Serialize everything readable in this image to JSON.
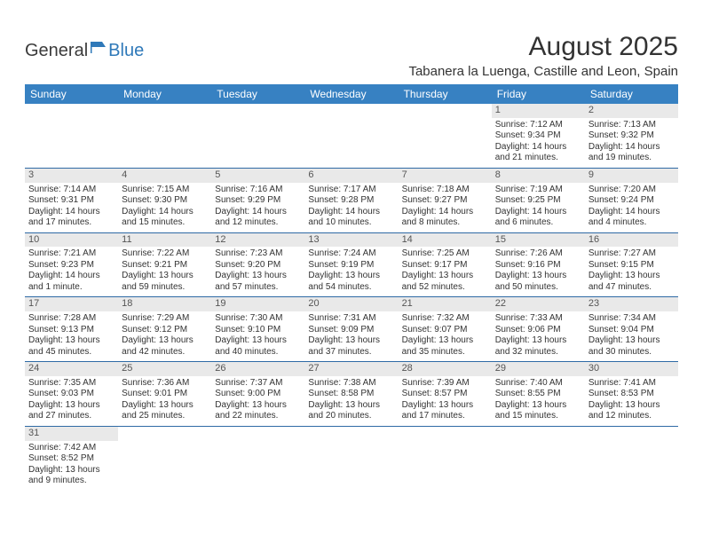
{
  "logo": {
    "part1": "General",
    "part2": "Blue"
  },
  "title": "August 2025",
  "location": "Tabanera la Luenga, Castille and Leon, Spain",
  "colors": {
    "header_bg": "#3781c2",
    "header_text": "#ffffff",
    "daynum_bg": "#e9e9e9",
    "row_border": "#2f6aa5",
    "text": "#333333",
    "logo_blue": "#2f79b9"
  },
  "weekdays": [
    "Sunday",
    "Monday",
    "Tuesday",
    "Wednesday",
    "Thursday",
    "Friday",
    "Saturday"
  ],
  "weeks": [
    [
      null,
      null,
      null,
      null,
      null,
      {
        "n": "1",
        "sr": "Sunrise: 7:12 AM",
        "ss": "Sunset: 9:34 PM",
        "d1": "Daylight: 14 hours",
        "d2": "and 21 minutes."
      },
      {
        "n": "2",
        "sr": "Sunrise: 7:13 AM",
        "ss": "Sunset: 9:32 PM",
        "d1": "Daylight: 14 hours",
        "d2": "and 19 minutes."
      }
    ],
    [
      {
        "n": "3",
        "sr": "Sunrise: 7:14 AM",
        "ss": "Sunset: 9:31 PM",
        "d1": "Daylight: 14 hours",
        "d2": "and 17 minutes."
      },
      {
        "n": "4",
        "sr": "Sunrise: 7:15 AM",
        "ss": "Sunset: 9:30 PM",
        "d1": "Daylight: 14 hours",
        "d2": "and 15 minutes."
      },
      {
        "n": "5",
        "sr": "Sunrise: 7:16 AM",
        "ss": "Sunset: 9:29 PM",
        "d1": "Daylight: 14 hours",
        "d2": "and 12 minutes."
      },
      {
        "n": "6",
        "sr": "Sunrise: 7:17 AM",
        "ss": "Sunset: 9:28 PM",
        "d1": "Daylight: 14 hours",
        "d2": "and 10 minutes."
      },
      {
        "n": "7",
        "sr": "Sunrise: 7:18 AM",
        "ss": "Sunset: 9:27 PM",
        "d1": "Daylight: 14 hours",
        "d2": "and 8 minutes."
      },
      {
        "n": "8",
        "sr": "Sunrise: 7:19 AM",
        "ss": "Sunset: 9:25 PM",
        "d1": "Daylight: 14 hours",
        "d2": "and 6 minutes."
      },
      {
        "n": "9",
        "sr": "Sunrise: 7:20 AM",
        "ss": "Sunset: 9:24 PM",
        "d1": "Daylight: 14 hours",
        "d2": "and 4 minutes."
      }
    ],
    [
      {
        "n": "10",
        "sr": "Sunrise: 7:21 AM",
        "ss": "Sunset: 9:23 PM",
        "d1": "Daylight: 14 hours",
        "d2": "and 1 minute."
      },
      {
        "n": "11",
        "sr": "Sunrise: 7:22 AM",
        "ss": "Sunset: 9:21 PM",
        "d1": "Daylight: 13 hours",
        "d2": "and 59 minutes."
      },
      {
        "n": "12",
        "sr": "Sunrise: 7:23 AM",
        "ss": "Sunset: 9:20 PM",
        "d1": "Daylight: 13 hours",
        "d2": "and 57 minutes."
      },
      {
        "n": "13",
        "sr": "Sunrise: 7:24 AM",
        "ss": "Sunset: 9:19 PM",
        "d1": "Daylight: 13 hours",
        "d2": "and 54 minutes."
      },
      {
        "n": "14",
        "sr": "Sunrise: 7:25 AM",
        "ss": "Sunset: 9:17 PM",
        "d1": "Daylight: 13 hours",
        "d2": "and 52 minutes."
      },
      {
        "n": "15",
        "sr": "Sunrise: 7:26 AM",
        "ss": "Sunset: 9:16 PM",
        "d1": "Daylight: 13 hours",
        "d2": "and 50 minutes."
      },
      {
        "n": "16",
        "sr": "Sunrise: 7:27 AM",
        "ss": "Sunset: 9:15 PM",
        "d1": "Daylight: 13 hours",
        "d2": "and 47 minutes."
      }
    ],
    [
      {
        "n": "17",
        "sr": "Sunrise: 7:28 AM",
        "ss": "Sunset: 9:13 PM",
        "d1": "Daylight: 13 hours",
        "d2": "and 45 minutes."
      },
      {
        "n": "18",
        "sr": "Sunrise: 7:29 AM",
        "ss": "Sunset: 9:12 PM",
        "d1": "Daylight: 13 hours",
        "d2": "and 42 minutes."
      },
      {
        "n": "19",
        "sr": "Sunrise: 7:30 AM",
        "ss": "Sunset: 9:10 PM",
        "d1": "Daylight: 13 hours",
        "d2": "and 40 minutes."
      },
      {
        "n": "20",
        "sr": "Sunrise: 7:31 AM",
        "ss": "Sunset: 9:09 PM",
        "d1": "Daylight: 13 hours",
        "d2": "and 37 minutes."
      },
      {
        "n": "21",
        "sr": "Sunrise: 7:32 AM",
        "ss": "Sunset: 9:07 PM",
        "d1": "Daylight: 13 hours",
        "d2": "and 35 minutes."
      },
      {
        "n": "22",
        "sr": "Sunrise: 7:33 AM",
        "ss": "Sunset: 9:06 PM",
        "d1": "Daylight: 13 hours",
        "d2": "and 32 minutes."
      },
      {
        "n": "23",
        "sr": "Sunrise: 7:34 AM",
        "ss": "Sunset: 9:04 PM",
        "d1": "Daylight: 13 hours",
        "d2": "and 30 minutes."
      }
    ],
    [
      {
        "n": "24",
        "sr": "Sunrise: 7:35 AM",
        "ss": "Sunset: 9:03 PM",
        "d1": "Daylight: 13 hours",
        "d2": "and 27 minutes."
      },
      {
        "n": "25",
        "sr": "Sunrise: 7:36 AM",
        "ss": "Sunset: 9:01 PM",
        "d1": "Daylight: 13 hours",
        "d2": "and 25 minutes."
      },
      {
        "n": "26",
        "sr": "Sunrise: 7:37 AM",
        "ss": "Sunset: 9:00 PM",
        "d1": "Daylight: 13 hours",
        "d2": "and 22 minutes."
      },
      {
        "n": "27",
        "sr": "Sunrise: 7:38 AM",
        "ss": "Sunset: 8:58 PM",
        "d1": "Daylight: 13 hours",
        "d2": "and 20 minutes."
      },
      {
        "n": "28",
        "sr": "Sunrise: 7:39 AM",
        "ss": "Sunset: 8:57 PM",
        "d1": "Daylight: 13 hours",
        "d2": "and 17 minutes."
      },
      {
        "n": "29",
        "sr": "Sunrise: 7:40 AM",
        "ss": "Sunset: 8:55 PM",
        "d1": "Daylight: 13 hours",
        "d2": "and 15 minutes."
      },
      {
        "n": "30",
        "sr": "Sunrise: 7:41 AM",
        "ss": "Sunset: 8:53 PM",
        "d1": "Daylight: 13 hours",
        "d2": "and 12 minutes."
      }
    ],
    [
      {
        "n": "31",
        "sr": "Sunrise: 7:42 AM",
        "ss": "Sunset: 8:52 PM",
        "d1": "Daylight: 13 hours",
        "d2": "and 9 minutes."
      },
      null,
      null,
      null,
      null,
      null,
      null
    ]
  ]
}
